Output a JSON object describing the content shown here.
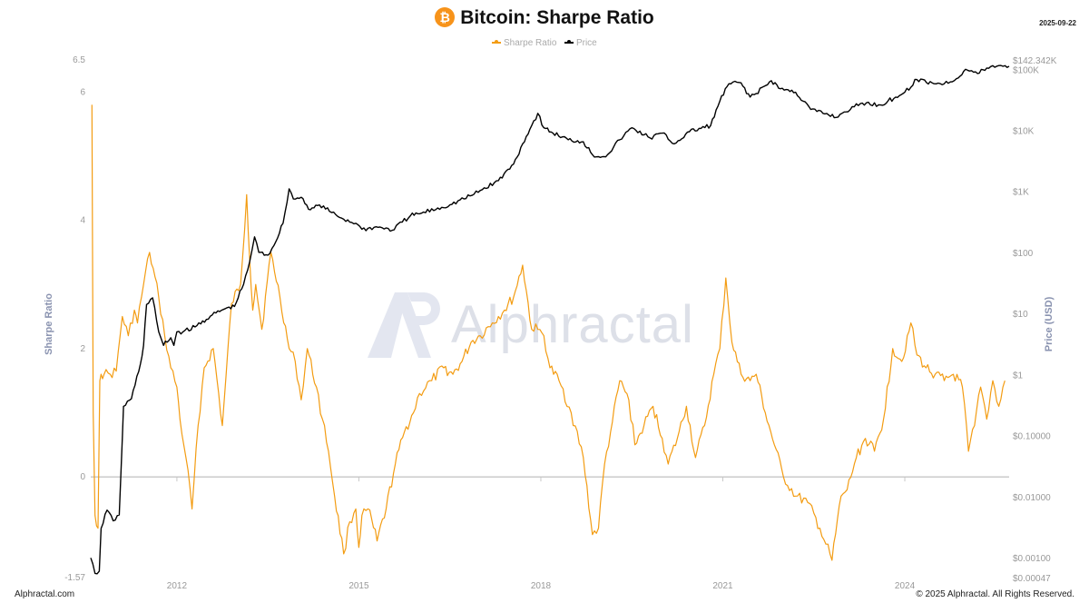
{
  "header": {
    "title": "Bitcoin: Sharpe Ratio",
    "coin_symbol": "₿",
    "date": "2025-09-22"
  },
  "legend": [
    {
      "label": "Sharpe Ratio",
      "color": "#f39c12"
    },
    {
      "label": "Price",
      "color": "#000000"
    }
  ],
  "footer": {
    "left": "Alphractal.com",
    "right": "© 2025 Alphractal. All Rights Reserved."
  },
  "watermark": {
    "text": "Alphractal"
  },
  "chart_data": {
    "type": "line",
    "title": "Bitcoin: Sharpe Ratio",
    "left_axis": {
      "label": "Sharpe Ratio",
      "range": [
        -1.57,
        6.5
      ],
      "ticks": [
        "6.5",
        "6",
        "4",
        "2",
        "0",
        "-1.57"
      ],
      "tick_values": [
        6.5,
        6,
        4,
        2,
        0,
        -1.57
      ]
    },
    "right_axis": {
      "label": "Price (USD)",
      "scale": "log",
      "range": [
        0.00047,
        142342
      ],
      "ticks": [
        "$142.342K",
        "$100K",
        "$10K",
        "$1K",
        "$100",
        "$10",
        "$1",
        "$0.10000",
        "$0.01000",
        "$0.00100",
        "$0.00047"
      ],
      "tick_values": [
        142342,
        100000,
        10000,
        1000,
        100,
        10,
        1,
        0.1,
        0.01,
        0.001,
        0.00047
      ]
    },
    "x_axis": {
      "range": [
        2010.58,
        2025.72
      ],
      "ticks": [
        "2012",
        "2015",
        "2018",
        "2021",
        "2024"
      ],
      "tick_values": [
        2012,
        2015,
        2018,
        2021,
        2024
      ]
    },
    "grid": false,
    "zero_line": true,
    "series": [
      {
        "name": "Sharpe Ratio",
        "axis": "left",
        "color": "#f39c12",
        "x": [
          2010.6,
          2010.62,
          2010.65,
          2010.7,
          2010.73,
          2010.75,
          2010.8,
          2010.9,
          2011.0,
          2011.1,
          2011.2,
          2011.3,
          2011.35,
          2011.45,
          2011.55,
          2011.7,
          2011.8,
          2011.9,
          2012.0,
          2012.05,
          2012.15,
          2012.25,
          2012.35,
          2012.45,
          2012.6,
          2012.75,
          2012.9,
          2013.05,
          2013.15,
          2013.2,
          2013.25,
          2013.3,
          2013.4,
          2013.55,
          2013.7,
          2013.85,
          2013.95,
          2014.05,
          2014.15,
          2014.3,
          2014.4,
          2014.5,
          2014.6,
          2014.75,
          2014.85,
          2014.95,
          2015.0,
          2015.05,
          2015.15,
          2015.3,
          2015.45,
          2015.6,
          2015.75,
          2015.9,
          2016.0,
          2016.2,
          2016.4,
          2016.55,
          2016.7,
          2016.85,
          2017.0,
          2017.2,
          2017.4,
          2017.55,
          2017.7,
          2017.85,
          2017.95,
          2018.05,
          2018.15,
          2018.3,
          2018.5,
          2018.7,
          2018.85,
          2018.95,
          2019.05,
          2019.15,
          2019.3,
          2019.45,
          2019.55,
          2019.7,
          2019.85,
          2020.0,
          2020.1,
          2020.25,
          2020.4,
          2020.55,
          2020.7,
          2020.85,
          2020.95,
          2021.05,
          2021.15,
          2021.3,
          2021.45,
          2021.55,
          2021.7,
          2021.85,
          2022.0,
          2022.2,
          2022.4,
          2022.6,
          2022.8,
          2022.95,
          2023.05,
          2023.2,
          2023.35,
          2023.5,
          2023.65,
          2023.8,
          2023.95,
          2024.1,
          2024.2,
          2024.35,
          2024.5,
          2024.65,
          2024.8,
          2024.95,
          2025.05,
          2025.15,
          2025.25,
          2025.35,
          2025.45,
          2025.55,
          2025.65
        ],
        "y": [
          5.8,
          1.0,
          -0.6,
          -0.8,
          1.5,
          1.6,
          1.6,
          1.6,
          1.65,
          2.5,
          2.2,
          2.6,
          2.4,
          3.0,
          3.5,
          2.8,
          2.2,
          1.7,
          1.4,
          0.9,
          0.3,
          -0.5,
          0.8,
          1.7,
          2.0,
          0.8,
          2.7,
          3.0,
          4.4,
          3.4,
          2.6,
          3.0,
          2.3,
          3.5,
          2.8,
          2.0,
          1.8,
          1.2,
          2.0,
          1.4,
          0.9,
          0.4,
          -0.3,
          -1.2,
          -0.7,
          -0.5,
          -1.1,
          -0.6,
          -0.5,
          -1.0,
          -0.5,
          0.2,
          0.7,
          1.0,
          1.3,
          1.5,
          1.7,
          1.6,
          1.8,
          2.1,
          2.2,
          2.4,
          2.6,
          2.8,
          3.3,
          2.3,
          2.3,
          2.2,
          1.7,
          1.5,
          1.0,
          0.3,
          -0.9,
          -0.8,
          0.2,
          0.7,
          1.5,
          1.2,
          0.5,
          0.8,
          1.1,
          0.6,
          0.2,
          0.6,
          1.1,
          0.3,
          0.8,
          1.6,
          2.0,
          3.1,
          2.1,
          1.6,
          1.5,
          1.6,
          1.0,
          0.5,
          0.0,
          -0.3,
          -0.4,
          -0.8,
          -1.3,
          -0.3,
          -0.2,
          0.3,
          0.6,
          0.4,
          0.9,
          2.0,
          1.8,
          2.4,
          1.9,
          1.7,
          1.6,
          1.5,
          1.6,
          1.4,
          0.4,
          0.8,
          1.4,
          0.9,
          1.5,
          1.1,
          1.5
        ]
      },
      {
        "name": "Price",
        "axis": "right",
        "color": "#000000",
        "x": [
          2010.58,
          2010.65,
          2010.72,
          2010.75,
          2010.85,
          2010.95,
          2011.05,
          2011.1,
          2011.12,
          2011.25,
          2011.4,
          2011.45,
          2011.5,
          2011.6,
          2011.7,
          2011.78,
          2011.9,
          2011.95,
          2012.0,
          2012.1,
          2012.3,
          2012.55,
          2012.8,
          2012.95,
          2013.1,
          2013.2,
          2013.28,
          2013.35,
          2013.5,
          2013.6,
          2013.75,
          2013.85,
          2013.92,
          2014.05,
          2014.2,
          2014.35,
          2014.55,
          2014.75,
          2014.95,
          2015.05,
          2015.35,
          2015.55,
          2015.85,
          2016.0,
          2016.5,
          2016.9,
          2017.3,
          2017.55,
          2017.7,
          2017.85,
          2017.95,
          2018.05,
          2018.2,
          2018.45,
          2018.7,
          2018.85,
          2018.95,
          2019.1,
          2019.3,
          2019.5,
          2019.8,
          2020.0,
          2020.2,
          2020.45,
          2020.8,
          2020.95,
          2021.1,
          2021.3,
          2021.45,
          2021.55,
          2021.8,
          2021.95,
          2022.2,
          2022.45,
          2022.65,
          2022.9,
          2023.0,
          2023.3,
          2023.6,
          2023.85,
          2024.0,
          2024.2,
          2024.45,
          2024.65,
          2024.85,
          2025.0,
          2025.2,
          2025.35,
          2025.55,
          2025.72
        ],
        "y": [
          0.00099,
          0.00055,
          0.0006,
          0.003,
          0.006,
          0.004,
          0.005,
          0.09,
          0.3,
          0.4,
          1.5,
          3,
          14,
          18,
          5,
          3,
          4,
          3,
          5,
          5,
          6,
          9,
          12,
          13,
          30,
          70,
          180,
          100,
          90,
          130,
          300,
          1100,
          750,
          800,
          500,
          600,
          450,
          350,
          300,
          240,
          260,
          230,
          400,
          430,
          600,
          900,
          1500,
          2800,
          6000,
          12000,
          19000,
          11000,
          9000,
          7000,
          6500,
          4000,
          3700,
          4000,
          7000,
          11000,
          7500,
          9000,
          6000,
          9500,
          12000,
          30000,
          58000,
          60000,
          35000,
          40000,
          65000,
          48000,
          42000,
          22000,
          19000,
          16500,
          20000,
          28000,
          26000,
          35000,
          42000,
          68000,
          60000,
          58000,
          70000,
          100000,
          85000,
          105000,
          115000,
          112000
        ]
      }
    ]
  }
}
